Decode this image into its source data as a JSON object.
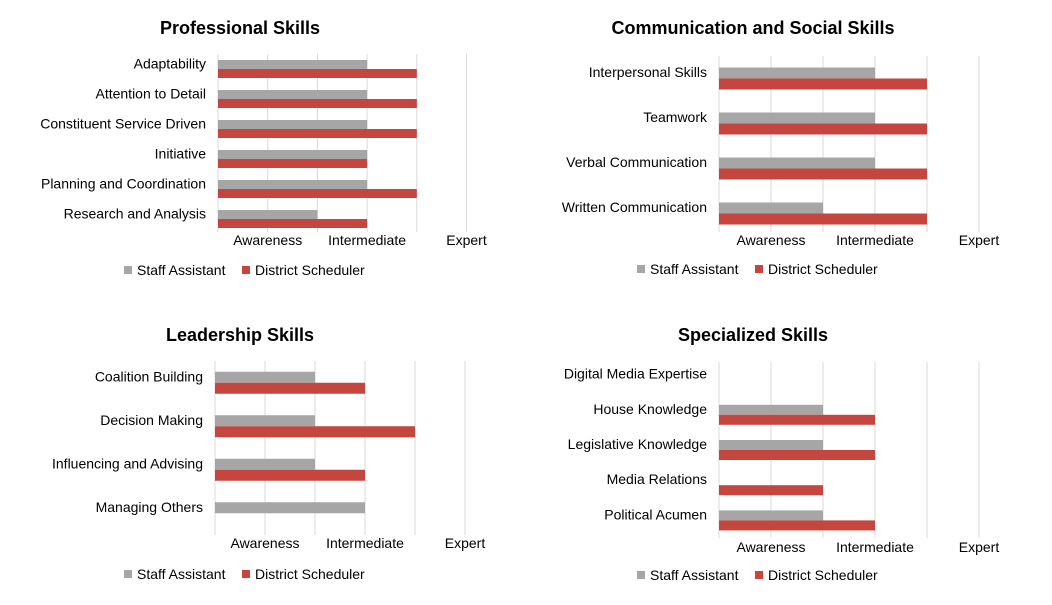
{
  "colors": {
    "staff": "#a6a6a6",
    "scheduler": "#c5453f",
    "grid": "#d9d9d9",
    "text": "#000000"
  },
  "chart_data": [
    {
      "type": "bar",
      "orientation": "horizontal",
      "title": "Professional Skills",
      "categories": [
        "Adaptability",
        "Attention to Detail",
        "Constituent Service Driven",
        "Initiative",
        "Planning and Coordination",
        "Research and Analysis"
      ],
      "series": [
        {
          "name": "Staff Assistant",
          "color": "#a6a6a6",
          "values": [
            3,
            3,
            3,
            3,
            3,
            2
          ]
        },
        {
          "name": "District Scheduler",
          "color": "#c5453f",
          "values": [
            4,
            4,
            4,
            3,
            4,
            3
          ]
        }
      ],
      "xlim": [
        0,
        5
      ],
      "tick_labels": [
        "Awareness",
        "Intermediate",
        "Expert"
      ],
      "grid": true,
      "legend": "bottom"
    },
    {
      "type": "bar",
      "orientation": "horizontal",
      "title": "Communication and Social Skills",
      "categories": [
        "Interpersonal Skills",
        "Teamwork",
        "Verbal Communication",
        "Written Communication"
      ],
      "series": [
        {
          "name": "Staff Assistant",
          "color": "#a6a6a6",
          "values": [
            3,
            3,
            3,
            2
          ]
        },
        {
          "name": "District Scheduler",
          "color": "#c5453f",
          "values": [
            4,
            4,
            4,
            4
          ]
        }
      ],
      "xlim": [
        0,
        5
      ],
      "tick_labels": [
        "Awareness",
        "Intermediate",
        "Expert"
      ],
      "grid": true,
      "legend": "bottom"
    },
    {
      "type": "bar",
      "orientation": "horizontal",
      "title": "Leadership Skills",
      "categories": [
        "Coalition Building",
        "Decision Making",
        "Influencing and Advising",
        "Managing Others"
      ],
      "series": [
        {
          "name": "Staff Assistant",
          "color": "#a6a6a6",
          "values": [
            2,
            2,
            2,
            3
          ]
        },
        {
          "name": "District Scheduler",
          "color": "#c5453f",
          "values": [
            3,
            4,
            3,
            0
          ]
        }
      ],
      "xlim": [
        0,
        5
      ],
      "tick_labels": [
        "Awareness",
        "Intermediate",
        "Expert"
      ],
      "grid": true,
      "legend": "bottom"
    },
    {
      "type": "bar",
      "orientation": "horizontal",
      "title": "Specialized Skills",
      "categories": [
        "Digital Media Expertise",
        "House Knowledge",
        "Legislative Knowledge",
        "Media Relations",
        "Political Acumen"
      ],
      "series": [
        {
          "name": "Staff Assistant",
          "color": "#a6a6a6",
          "values": [
            0,
            2,
            2,
            0,
            2
          ]
        },
        {
          "name": "District Scheduler",
          "color": "#c5453f",
          "values": [
            0,
            3,
            3,
            2,
            3
          ]
        }
      ],
      "xlim": [
        0,
        5
      ],
      "tick_labels": [
        "Awareness",
        "Intermediate",
        "Expert"
      ],
      "grid": true,
      "legend": "bottom"
    }
  ]
}
